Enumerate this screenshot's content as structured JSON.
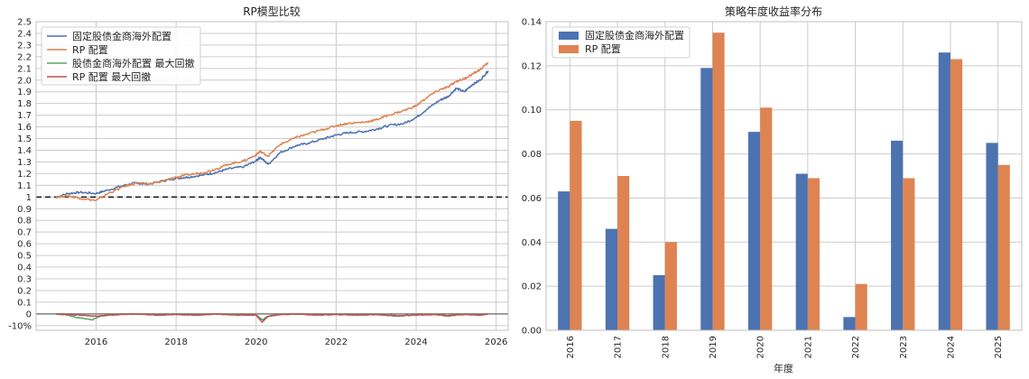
{
  "colors": {
    "blue": "#4c72b0",
    "orange": "#dd8452",
    "green": "#55a868",
    "red": "#c44e52",
    "grid": "#cccccc",
    "frame": "#c0c0c0",
    "refline": "#111111"
  },
  "chart_data": [
    {
      "type": "line",
      "title": "RP模型比较",
      "xlabel": "",
      "ylabel": "",
      "xlim": [
        2014.5,
        2026.3
      ],
      "ylim": [
        -0.14,
        2.5
      ],
      "x_ticks": [
        2016,
        2018,
        2020,
        2022,
        2024,
        2026
      ],
      "x_tick_labels": [
        "2016",
        "2018",
        "2020",
        "2022",
        "2024",
        "2026"
      ],
      "y_ticks": [
        -0.1,
        0,
        0.1,
        0.2,
        0.3,
        0.4,
        0.5,
        0.6,
        0.7,
        0.8,
        0.9,
        1.0,
        1.1,
        1.2,
        1.3,
        1.4,
        1.5,
        1.6,
        1.7,
        1.8,
        1.9,
        2.0,
        2.1,
        2.2,
        2.3,
        2.4,
        2.5
      ],
      "y_tick_labels": [
        "-10%",
        "0",
        "0.1",
        "0.2",
        "0.3",
        "0.4",
        "0.5",
        "0.6",
        "0.7",
        "0.8",
        "0.9",
        "1",
        "1.1",
        "1.2",
        "1.3",
        "1.4",
        "1.5",
        "1.6",
        "1.7",
        "1.8",
        "1.9",
        "2.0",
        "2.1",
        "2.2",
        "2.3",
        "2.4",
        "2.5"
      ],
      "grid": true,
      "legend_position": "top-left",
      "reference_lines": [
        1.0
      ],
      "series": [
        {
          "name": "固定股债金商海外配置",
          "color": "#4c72b0",
          "x": [
            2015.0,
            2015.3,
            2015.6,
            2016.0,
            2016.3,
            2016.7,
            2017.0,
            2017.3,
            2017.7,
            2018.0,
            2018.3,
            2018.7,
            2019.0,
            2019.3,
            2019.7,
            2020.0,
            2020.1,
            2020.3,
            2020.6,
            2021.0,
            2021.3,
            2021.7,
            2022.0,
            2022.3,
            2022.7,
            2023.0,
            2023.3,
            2023.7,
            2024.0,
            2024.3,
            2024.6,
            2024.8,
            2025.0,
            2025.2,
            2025.4,
            2025.6,
            2025.8
          ],
          "y": [
            1.0,
            1.03,
            1.04,
            1.03,
            1.06,
            1.1,
            1.12,
            1.11,
            1.14,
            1.16,
            1.17,
            1.19,
            1.21,
            1.24,
            1.26,
            1.31,
            1.34,
            1.28,
            1.38,
            1.44,
            1.46,
            1.5,
            1.53,
            1.55,
            1.56,
            1.58,
            1.61,
            1.63,
            1.68,
            1.76,
            1.83,
            1.86,
            1.93,
            1.9,
            1.96,
            2.0,
            2.08
          ]
        },
        {
          "name": "RP 配置",
          "color": "#dd8452",
          "x": [
            2015.0,
            2015.3,
            2015.6,
            2016.0,
            2016.3,
            2016.7,
            2017.0,
            2017.3,
            2017.7,
            2018.0,
            2018.3,
            2018.7,
            2019.0,
            2019.3,
            2019.7,
            2020.0,
            2020.1,
            2020.3,
            2020.6,
            2021.0,
            2021.3,
            2021.7,
            2022.0,
            2022.3,
            2022.7,
            2023.0,
            2023.3,
            2023.7,
            2024.0,
            2024.3,
            2024.6,
            2024.8,
            2025.0,
            2025.2,
            2025.4,
            2025.6,
            2025.8
          ],
          "y": [
            1.0,
            1.01,
            0.99,
            0.97,
            1.03,
            1.09,
            1.12,
            1.11,
            1.14,
            1.17,
            1.19,
            1.21,
            1.24,
            1.28,
            1.31,
            1.36,
            1.39,
            1.35,
            1.45,
            1.51,
            1.54,
            1.58,
            1.61,
            1.63,
            1.64,
            1.66,
            1.7,
            1.74,
            1.78,
            1.86,
            1.92,
            1.94,
            1.99,
            2.01,
            2.05,
            2.09,
            2.15
          ]
        },
        {
          "name": "股债金商海外配置 最大回撤",
          "color": "#55a868",
          "x": [
            2015.0,
            2015.3,
            2015.5,
            2015.7,
            2015.9,
            2016.1,
            2016.3,
            2016.6,
            2017.0,
            2017.5,
            2018.0,
            2018.5,
            2019.0,
            2019.5,
            2020.0,
            2020.15,
            2020.3,
            2020.6,
            2021.0,
            2021.5,
            2022.0,
            2022.5,
            2023.0,
            2023.5,
            2024.0,
            2024.5,
            2024.8,
            2025.0,
            2025.3,
            2025.6,
            2025.8
          ],
          "y": [
            0,
            -0.01,
            -0.03,
            -0.04,
            -0.05,
            -0.02,
            -0.01,
            -0.005,
            0,
            -0.01,
            -0.005,
            -0.01,
            0,
            -0.005,
            -0.01,
            -0.05,
            -0.02,
            -0.005,
            0,
            -0.01,
            -0.005,
            -0.01,
            -0.005,
            -0.02,
            -0.01,
            -0.005,
            -0.02,
            -0.01,
            -0.005,
            -0.01,
            0
          ]
        },
        {
          "name": "RP 配置 最大回撤",
          "color": "#c44e52",
          "x": [
            2015.0,
            2015.3,
            2015.6,
            2016.0,
            2016.3,
            2016.6,
            2017.0,
            2017.5,
            2018.0,
            2018.5,
            2019.0,
            2019.5,
            2020.0,
            2020.15,
            2020.3,
            2020.6,
            2021.0,
            2021.5,
            2022.0,
            2022.5,
            2023.0,
            2023.5,
            2024.0,
            2024.5,
            2024.8,
            2025.0,
            2025.3,
            2025.6,
            2025.8
          ],
          "y": [
            0,
            -0.005,
            -0.01,
            -0.02,
            -0.01,
            -0.005,
            0,
            -0.01,
            -0.005,
            -0.01,
            0,
            -0.01,
            -0.01,
            -0.07,
            -0.02,
            -0.005,
            0,
            -0.01,
            -0.005,
            -0.01,
            -0.005,
            -0.015,
            -0.01,
            -0.005,
            -0.015,
            -0.005,
            -0.005,
            -0.01,
            0
          ]
        }
      ]
    },
    {
      "type": "bar",
      "title": "策略年度收益率分布",
      "xlabel": "年度",
      "ylabel": "",
      "categories": [
        "2016",
        "2017",
        "2018",
        "2019",
        "2020",
        "2021",
        "2022",
        "2023",
        "2024",
        "2025"
      ],
      "ylim": [
        0,
        0.14
      ],
      "y_ticks": [
        0.0,
        0.02,
        0.04,
        0.06,
        0.08,
        0.1,
        0.12,
        0.14
      ],
      "y_tick_labels": [
        "0.00",
        "0.02",
        "0.04",
        "0.06",
        "0.08",
        "0.10",
        "0.12",
        "0.14"
      ],
      "grid": true,
      "legend_position": "top-left",
      "series": [
        {
          "name": "固定股债金商海外配置",
          "color": "#4c72b0",
          "values": [
            0.063,
            0.046,
            0.025,
            0.119,
            0.09,
            0.071,
            0.006,
            0.086,
            0.126,
            0.085
          ]
        },
        {
          "name": "RP 配置",
          "color": "#dd8452",
          "values": [
            0.095,
            0.07,
            0.04,
            0.135,
            0.101,
            0.069,
            0.021,
            0.069,
            0.123,
            0.075
          ]
        }
      ]
    }
  ]
}
